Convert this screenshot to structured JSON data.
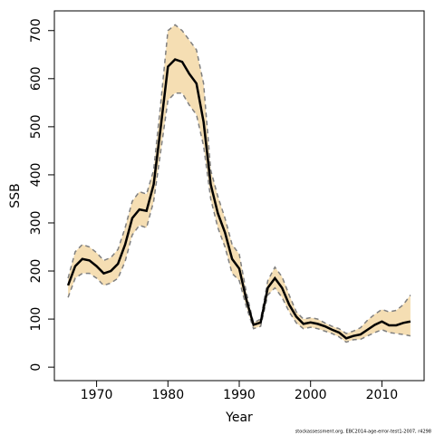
{
  "chart_data": {
    "type": "line",
    "xlabel": "Year",
    "ylabel": "SSB",
    "footnote": "stockassessment.org, EBC2014-age-error-test1-2007, r4298",
    "x": [
      1966,
      1967,
      1968,
      1969,
      1970,
      1971,
      1972,
      1973,
      1974,
      1975,
      1976,
      1977,
      1978,
      1979,
      1980,
      1981,
      1982,
      1983,
      1984,
      1985,
      1986,
      1987,
      1988,
      1989,
      1990,
      1991,
      1992,
      1993,
      1994,
      1995,
      1996,
      1997,
      1998,
      1999,
      2000,
      2001,
      2002,
      2003,
      2004,
      2005,
      2006,
      2007,
      2008,
      2009,
      2010,
      2011,
      2012,
      2013,
      2014
    ],
    "values": [
      170,
      210,
      225,
      222,
      210,
      195,
      200,
      215,
      255,
      310,
      328,
      325,
      380,
      500,
      625,
      640,
      635,
      610,
      590,
      510,
      380,
      320,
      280,
      225,
      205,
      140,
      88,
      93,
      165,
      185,
      165,
      130,
      105,
      90,
      93,
      90,
      85,
      78,
      72,
      60,
      65,
      68,
      78,
      88,
      95,
      87,
      87,
      92,
      95
    ],
    "upper": [
      185,
      240,
      255,
      250,
      238,
      222,
      228,
      245,
      290,
      345,
      365,
      360,
      410,
      550,
      700,
      712,
      700,
      680,
      660,
      590,
      410,
      355,
      310,
      255,
      235,
      155,
      92,
      100,
      180,
      208,
      188,
      150,
      115,
      100,
      103,
      100,
      92,
      85,
      80,
      70,
      75,
      82,
      98,
      110,
      120,
      115,
      118,
      130,
      150
    ],
    "lower": [
      145,
      185,
      195,
      195,
      185,
      170,
      175,
      185,
      220,
      275,
      295,
      290,
      345,
      450,
      555,
      570,
      570,
      545,
      525,
      460,
      350,
      290,
      250,
      195,
      180,
      125,
      80,
      85,
      150,
      165,
      145,
      115,
      92,
      80,
      83,
      80,
      75,
      70,
      63,
      52,
      57,
      58,
      65,
      72,
      78,
      72,
      70,
      68,
      65
    ],
    "color": "#000000",
    "band_color": "#f5deb3",
    "bound_color": "#808080",
    "xlim": [
      1964.08,
      2015.92
    ],
    "ylim": [
      -28,
      741
    ],
    "xticks": [
      1970,
      1980,
      1990,
      2000,
      2010
    ],
    "yticks": [
      0,
      100,
      200,
      300,
      400,
      500,
      600,
      700
    ]
  }
}
